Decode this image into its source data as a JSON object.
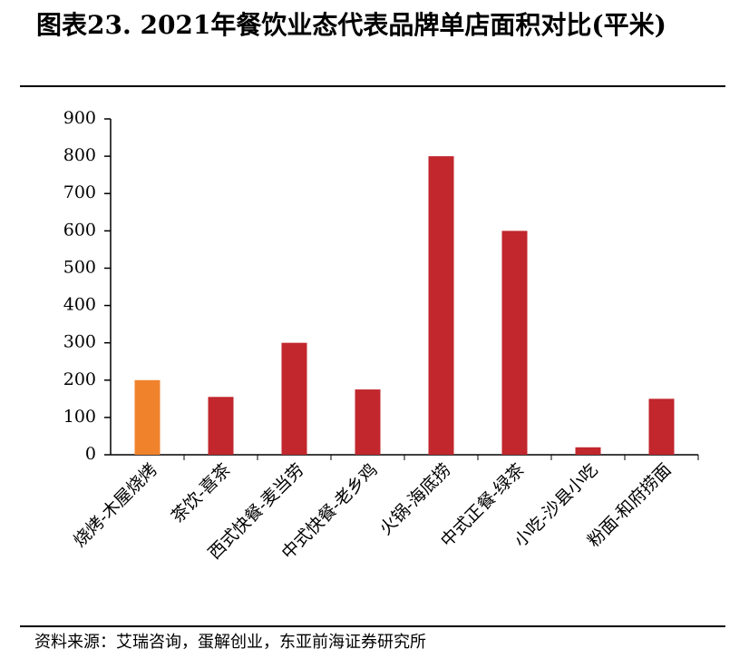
{
  "chart_data": {
    "type": "bar",
    "title": "图表23. 2021年餐饮业态代表品牌单店面积对比(平米)",
    "categories": [
      "烧烤-木屋烧烤",
      "茶饮-喜茶",
      "西式快餐-麦当劳",
      "中式快餐-老乡鸡",
      "火锅-海底捞",
      "中式正餐-绿茶",
      "小吃-沙县小吃",
      "粉面-和府捞面"
    ],
    "values": [
      200,
      155,
      300,
      175,
      800,
      600,
      20,
      150
    ],
    "colors": [
      "#f0822c",
      "#c1272d",
      "#c1272d",
      "#c1272d",
      "#c1272d",
      "#c1272d",
      "#c1272d",
      "#c1272d"
    ],
    "ylim": [
      0,
      900
    ],
    "yticks": [
      0,
      100,
      200,
      300,
      400,
      500,
      600,
      700,
      800,
      900
    ],
    "grid": false,
    "source": "资料来源：艾瑞咨询，蛋解创业，东亚前海证券研究所"
  }
}
